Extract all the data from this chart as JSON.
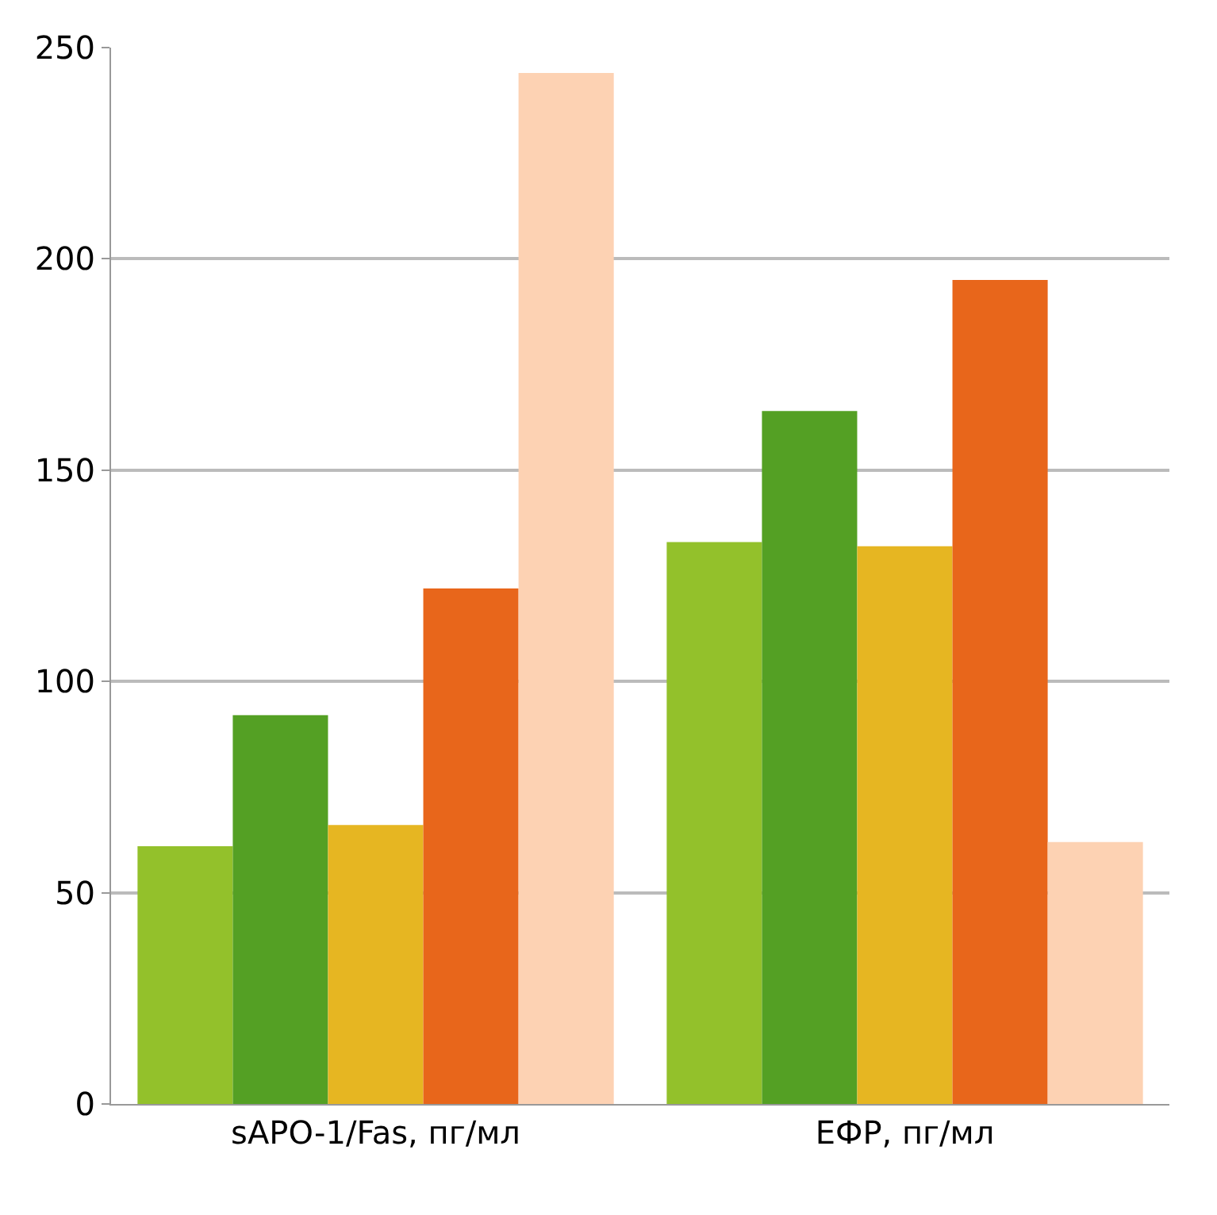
{
  "chart_data": {
    "type": "bar",
    "categories": [
      "sAPO-1/Fas, пг/мл",
      "ЕФР, пг/мл"
    ],
    "series": [
      {
        "color": "#93c12b",
        "values": [
          61,
          133
        ]
      },
      {
        "color": "#54a024",
        "values": [
          92,
          164
        ]
      },
      {
        "color": "#e6b622",
        "values": [
          66,
          132
        ]
      },
      {
        "color": "#e8661b",
        "values": [
          122,
          195
        ]
      },
      {
        "color": "#fdd2b3",
        "values": [
          244,
          62
        ]
      }
    ],
    "ylim": [
      0,
      250
    ],
    "yticks": [
      0,
      50,
      100,
      150,
      200,
      250
    ],
    "grid": "y"
  }
}
